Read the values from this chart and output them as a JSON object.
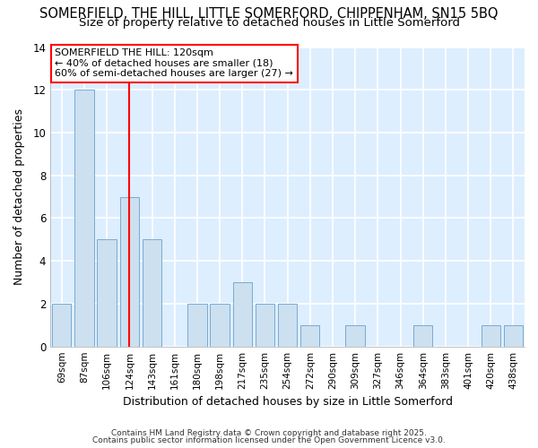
{
  "title1": "SOMERFIELD, THE HILL, LITTLE SOMERFORD, CHIPPENHAM, SN15 5BQ",
  "title2": "Size of property relative to detached houses in Little Somerford",
  "xlabel": "Distribution of detached houses by size in Little Somerford",
  "ylabel": "Number of detached properties",
  "categories": [
    "69sqm",
    "87sqm",
    "106sqm",
    "124sqm",
    "143sqm",
    "161sqm",
    "180sqm",
    "198sqm",
    "217sqm",
    "235sqm",
    "254sqm",
    "272sqm",
    "290sqm",
    "309sqm",
    "327sqm",
    "346sqm",
    "364sqm",
    "383sqm",
    "401sqm",
    "420sqm",
    "438sqm"
  ],
  "values": [
    2,
    12,
    5,
    7,
    5,
    0,
    2,
    2,
    3,
    2,
    2,
    1,
    0,
    1,
    0,
    0,
    1,
    0,
    0,
    1,
    1
  ],
  "bar_color": "#cce0f0",
  "bar_edge_color": "#7aaad0",
  "red_line_x": 3.0,
  "annotation_title": "SOMERFIELD THE HILL: 120sqm",
  "annotation_line1": "← 40% of detached houses are smaller (18)",
  "annotation_line2": "60% of semi-detached houses are larger (27) →",
  "ylim": [
    0,
    14
  ],
  "yticks": [
    0,
    2,
    4,
    6,
    8,
    10,
    12,
    14
  ],
  "footer1": "Contains HM Land Registry data © Crown copyright and database right 2025.",
  "footer2": "Contains public sector information licensed under the Open Government Licence v3.0.",
  "fig_bg_color": "#ffffff",
  "plot_bg_color": "#ddeeff",
  "title_fontsize": 10.5,
  "subtitle_fontsize": 9.5
}
